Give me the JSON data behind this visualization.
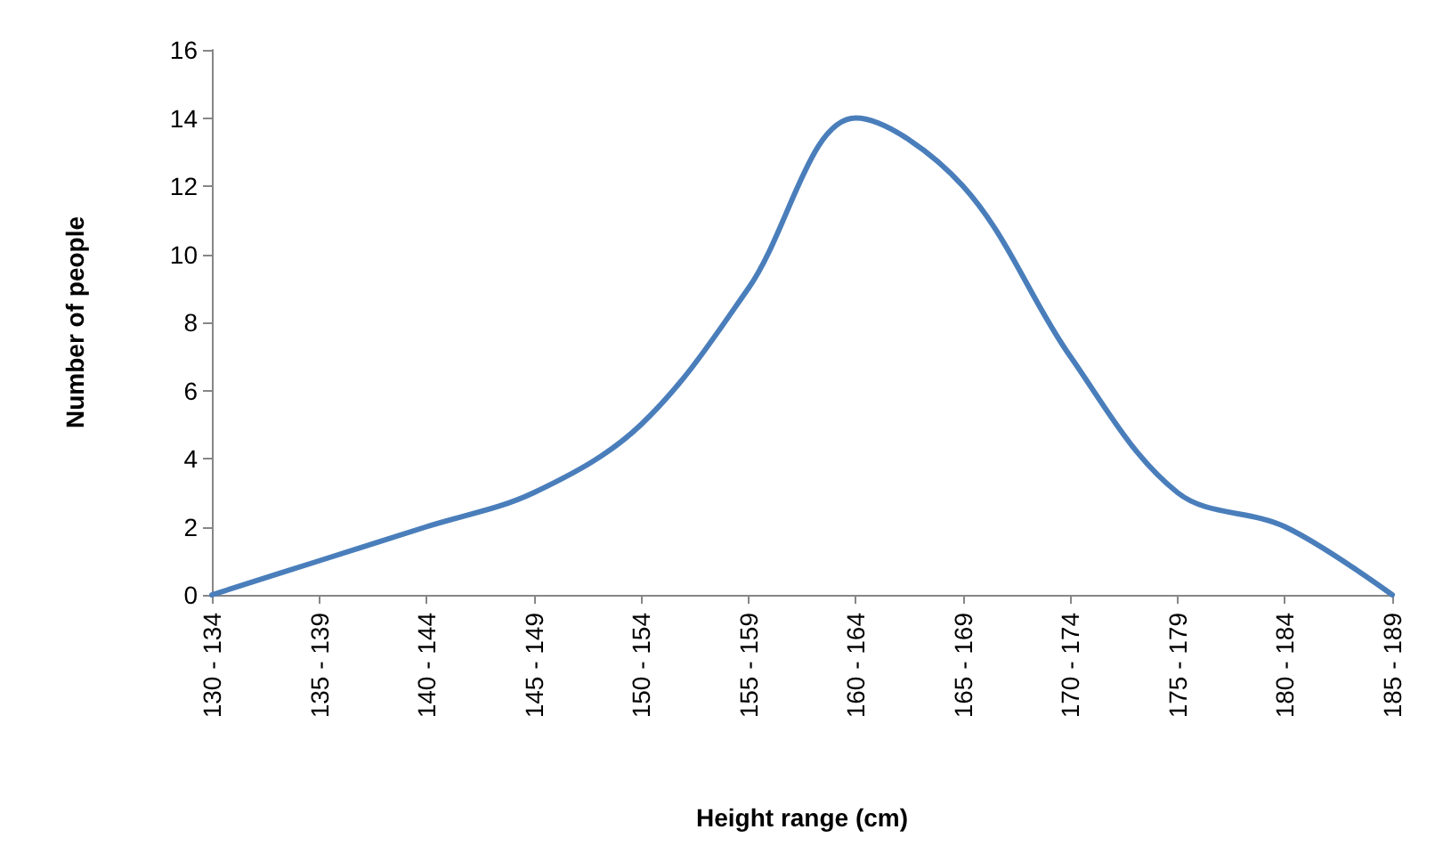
{
  "chart_data": {
    "type": "line",
    "xlabel": "Height range (cm)",
    "ylabel": "Number of people",
    "categories": [
      "130 - 134",
      "135 - 139",
      "140 - 144",
      "145 - 149",
      "150 - 154",
      "155 - 159",
      "160 - 164",
      "165 - 169",
      "170 - 174",
      "175 - 179",
      "180 - 184",
      "185 - 189"
    ],
    "series": [
      {
        "color": "#4a7ebb",
        "values": [
          0,
          1,
          2,
          3,
          5,
          9,
          14,
          12,
          7,
          3,
          2,
          0
        ]
      }
    ],
    "ylim": [
      0,
      16
    ],
    "yticks": [
      0,
      2,
      4,
      6,
      8,
      10,
      12,
      14,
      16
    ],
    "grid": false,
    "marker": "none",
    "line_style": "solid"
  }
}
